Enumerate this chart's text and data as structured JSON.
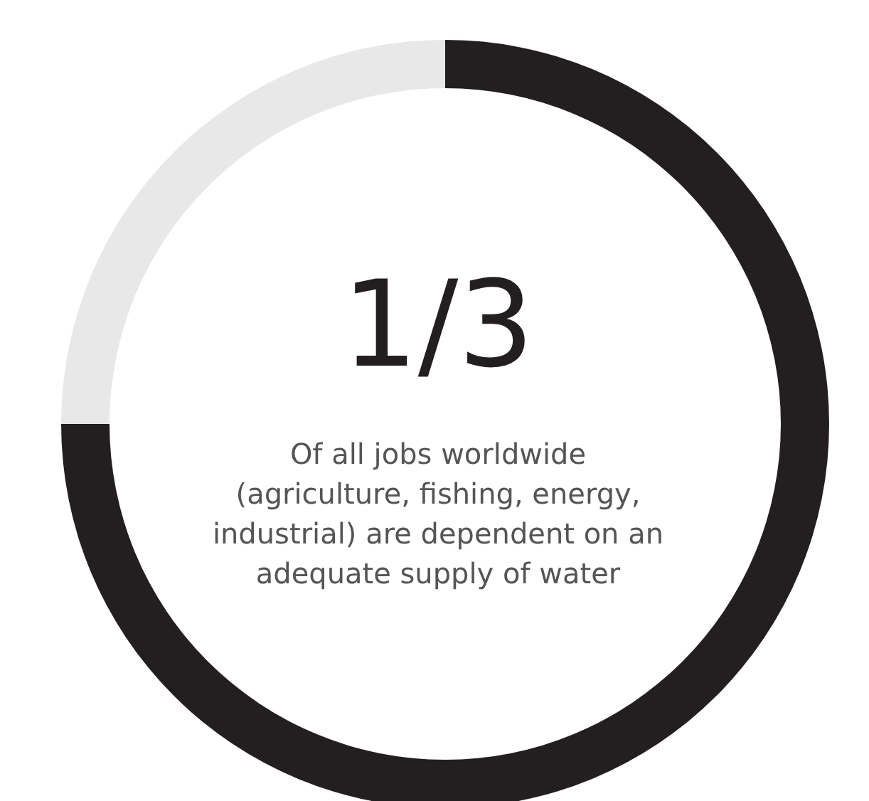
{
  "chart_data": {
    "type": "donut",
    "title": "1/3",
    "subtitle": "Of all jobs worldwide (agriculture, fishing, energy, industrial) are dependent on an adequate supply of water",
    "categories": [
      null,
      null
    ],
    "values": [
      75,
      25
    ],
    "colors": [
      "#231f20",
      "#e8e8e8"
    ]
  }
}
